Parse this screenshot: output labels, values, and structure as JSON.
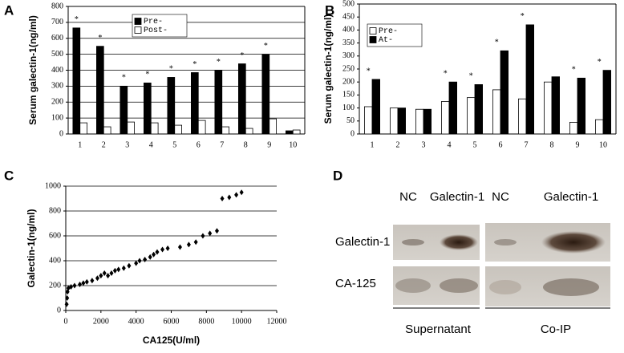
{
  "chart_data": [
    {
      "type": "bar",
      "panel": "A",
      "y_label": "Serum galectin-1(ng/ml)",
      "categories": [
        "1",
        "2",
        "3",
        "4",
        "5",
        "6",
        "7",
        "8",
        "9",
        "10"
      ],
      "series": [
        {
          "name": "Pre-",
          "color": "#000000",
          "values": [
            665,
            550,
            300,
            320,
            355,
            385,
            400,
            440,
            500,
            20
          ]
        },
        {
          "name": "Post-",
          "color": "#ffffff",
          "values": [
            70,
            45,
            75,
            70,
            55,
            85,
            45,
            35,
            95,
            25
          ]
        }
      ],
      "annotations": [
        "*",
        "*",
        "*",
        "*",
        "*",
        "*",
        "*",
        "*",
        "*",
        null
      ],
      "ylim": [
        0,
        800
      ],
      "yticks": [
        0,
        100,
        200,
        300,
        400,
        500,
        600,
        700,
        800
      ],
      "grid": true
    },
    {
      "type": "bar",
      "panel": "B",
      "y_label": "Serum galectin-1(ng/ml)",
      "categories": [
        "1",
        "2",
        "3",
        "4",
        "5",
        "6",
        "7",
        "8",
        "9",
        "10"
      ],
      "series": [
        {
          "name": "Pre-",
          "color": "#ffffff",
          "values": [
            105,
            100,
            95,
            125,
            140,
            170,
            135,
            200,
            45,
            55
          ]
        },
        {
          "name": "At-",
          "color": "#000000",
          "values": [
            210,
            100,
            95,
            200,
            190,
            320,
            420,
            220,
            215,
            245
          ]
        }
      ],
      "annotations": [
        "*",
        null,
        null,
        "*",
        "*",
        "*",
        "*",
        null,
        "*",
        "*"
      ],
      "ylim": [
        0,
        500
      ],
      "yticks": [
        0,
        50,
        100,
        150,
        200,
        250,
        300,
        350,
        400,
        450,
        500
      ],
      "grid": false
    },
    {
      "type": "scatter",
      "panel": "C",
      "x_label": "CA125(U/ml)",
      "y_label": "Galectin-1(ng/ml)",
      "color": "#000000",
      "x": [
        50,
        80,
        100,
        150,
        300,
        500,
        800,
        1000,
        1200,
        1500,
        1800,
        2000,
        2200,
        2400,
        2600,
        2800,
        3000,
        3300,
        3600,
        4000,
        4200,
        4500,
        4800,
        5000,
        5200,
        5500,
        5800,
        6500,
        7000,
        7400,
        7800,
        8200,
        8600,
        8900,
        9300,
        9700,
        10000
      ],
      "values": [
        50,
        100,
        150,
        180,
        190,
        200,
        210,
        220,
        230,
        240,
        260,
        280,
        300,
        280,
        300,
        320,
        330,
        340,
        360,
        380,
        400,
        410,
        430,
        450,
        470,
        490,
        500,
        510,
        530,
        550,
        600,
        620,
        640,
        900,
        910,
        930,
        950
      ],
      "xlim": [
        0,
        12000
      ],
      "xticks": [
        0,
        2000,
        4000,
        6000,
        8000,
        10000,
        12000
      ],
      "ylim": [
        0,
        1000
      ],
      "yticks": [
        0,
        200,
        400,
        600,
        800,
        1000
      ],
      "grid": true
    }
  ],
  "blot": {
    "panel": "D",
    "columns": [
      "NC",
      "Galectin-1",
      "NC",
      "Galectin-1"
    ],
    "rows": [
      "Galectin-1",
      "CA-125"
    ],
    "groups": [
      "Supernatant",
      "Co-IP"
    ]
  }
}
